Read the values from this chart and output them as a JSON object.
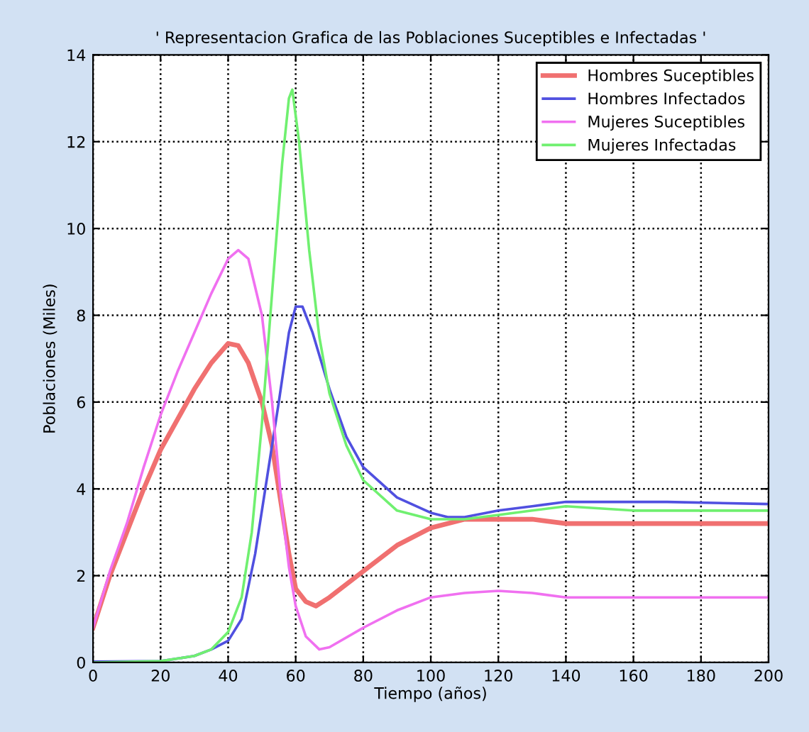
{
  "chart_data": {
    "type": "line",
    "title": "' Representacion Grafica de las Poblaciones Suceptibles e Infectadas '",
    "xlabel": "Tiempo (años)",
    "ylabel": "Poblaciones (Miles)",
    "xlim": [
      0,
      200
    ],
    "xticks": [
      0,
      20,
      40,
      60,
      80,
      100,
      120,
      140,
      160,
      180,
      200
    ],
    "ylim": [
      0,
      14
    ],
    "yticks": [
      0,
      2,
      4,
      6,
      8,
      10,
      12,
      14
    ],
    "grid": true,
    "legend": "top right",
    "line_style": "solid",
    "marker": "none",
    "series": [
      {
        "name": "Hombres Suceptibles",
        "color": "#f07070",
        "x": [
          0,
          5,
          10,
          15,
          20,
          25,
          30,
          35,
          40,
          43,
          46,
          50,
          53,
          56,
          58,
          60,
          63,
          66,
          70,
          80,
          90,
          100,
          110,
          120,
          130,
          140,
          160,
          200
        ],
        "values": [
          0.8,
          2.0,
          3.0,
          4.0,
          4.9,
          5.6,
          6.3,
          6.9,
          7.35,
          7.3,
          6.9,
          6.0,
          5.0,
          3.5,
          2.5,
          1.7,
          1.4,
          1.3,
          1.5,
          2.1,
          2.7,
          3.1,
          3.3,
          3.3,
          3.3,
          3.2,
          3.2,
          3.2
        ]
      },
      {
        "name": "Hombres Infectados",
        "color": "#5050e0",
        "x": [
          0,
          20,
          30,
          35,
          40,
          44,
          48,
          52,
          55,
          58,
          60,
          62,
          65,
          70,
          75,
          80,
          90,
          100,
          105,
          110,
          120,
          130,
          140,
          170,
          200
        ],
        "values": [
          0.02,
          0.03,
          0.15,
          0.3,
          0.5,
          1.0,
          2.5,
          4.5,
          6.0,
          7.6,
          8.2,
          8.2,
          7.6,
          6.3,
          5.2,
          4.5,
          3.8,
          3.45,
          3.35,
          3.35,
          3.5,
          3.6,
          3.7,
          3.7,
          3.65
        ]
      },
      {
        "name": "Mujeres Suceptibles",
        "color": "#f070f0",
        "x": [
          0,
          5,
          10,
          15,
          20,
          25,
          30,
          35,
          40,
          43,
          46,
          50,
          53,
          56,
          58,
          60,
          63,
          67,
          70,
          80,
          90,
          100,
          110,
          120,
          130,
          140,
          200
        ],
        "values": [
          0.8,
          2.1,
          3.2,
          4.5,
          5.7,
          6.7,
          7.6,
          8.5,
          9.3,
          9.5,
          9.3,
          8.0,
          6.0,
          3.5,
          2.2,
          1.3,
          0.6,
          0.3,
          0.35,
          0.8,
          1.2,
          1.5,
          1.6,
          1.65,
          1.6,
          1.5,
          1.5
        ]
      },
      {
        "name": "Mujeres Infectadas",
        "color": "#70f070",
        "x": [
          0,
          20,
          30,
          35,
          40,
          44,
          47,
          50,
          53,
          56,
          58,
          59,
          61,
          64,
          67,
          70,
          75,
          80,
          90,
          100,
          110,
          120,
          130,
          140,
          160,
          200
        ],
        "values": [
          0.0,
          0.03,
          0.15,
          0.3,
          0.7,
          1.5,
          3.0,
          5.5,
          8.5,
          11.5,
          13.0,
          13.2,
          12.0,
          9.5,
          7.5,
          6.2,
          5.0,
          4.2,
          3.5,
          3.3,
          3.3,
          3.4,
          3.5,
          3.6,
          3.5,
          3.5
        ]
      }
    ]
  }
}
